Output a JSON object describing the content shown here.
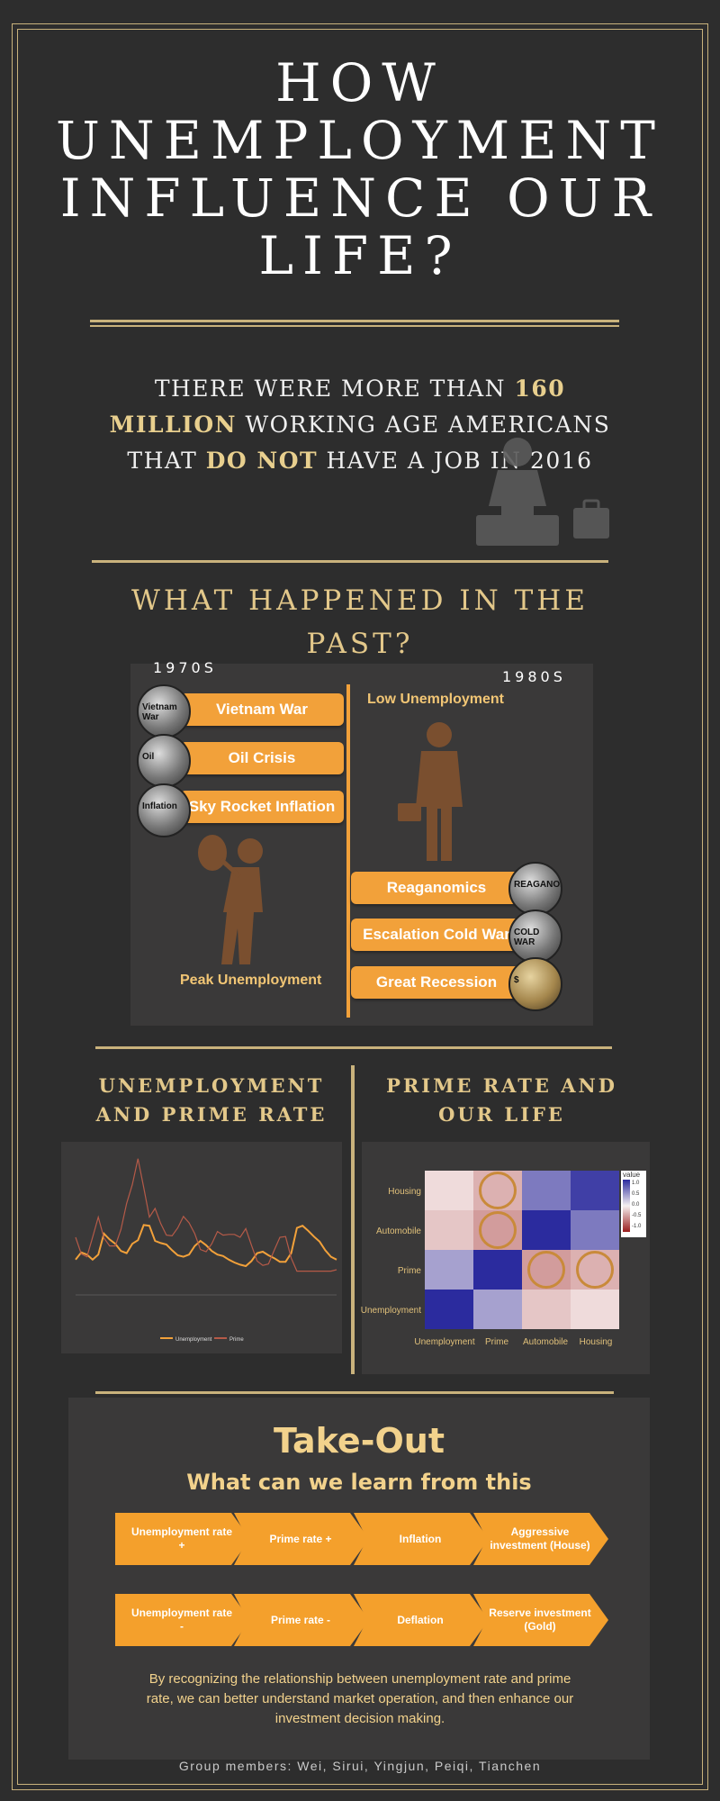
{
  "title": "HOW UNEMPLOYMENT INFLUENCE OUR LIFE?",
  "intro": {
    "part1": "THERE WERE MORE THAN ",
    "highlight1": "160 MILLION",
    "part2": " WORKING AGE AMERICANS THAT ",
    "highlight2": "DO NOT",
    "part3": " HAVE A JOB IN 2016"
  },
  "past": {
    "title": "WHAT HAPPENED IN THE PAST?",
    "decade_left": "1970S",
    "decade_right": "1980S",
    "events_70s": [
      "Vietnam War",
      "Oil Crisis",
      "Sky Rocket Inflation"
    ],
    "events_80s": [
      "Reaganomics",
      "Escalation Cold War",
      "Great Recession"
    ],
    "coin_texts": [
      "Vietnam War",
      "Oil",
      "Inflation",
      "REAGANOMICS",
      "COLD WAR",
      "$"
    ],
    "label_70s": "Peak Unemployment",
    "label_80s": "Low Unemployment"
  },
  "unemp_prime": {
    "title": "UNEMPLOYMENT AND PRIME RATE",
    "legend": [
      "Unemployment",
      "Prime"
    ]
  },
  "prime_life": {
    "title": "PRIME RATE AND OUR LIFE",
    "legend_title": "value",
    "legend_ticks": [
      "1.0",
      "0.5",
      "0.0",
      "-0.5",
      "-1.0"
    ],
    "rows": [
      "Housing",
      "Automobile",
      "Prime",
      "Unemployment"
    ],
    "cols": [
      "Unemployment",
      "Prime",
      "Automobile",
      "Housing"
    ]
  },
  "takeout": {
    "title": "Take-Out",
    "subtitle": "What can we learn from this",
    "row1": [
      "Unemployment rate +",
      "Prime rate +",
      "Inflation",
      "Aggressive investment (House)"
    ],
    "row2": [
      "Unemployment rate -",
      "Prime rate -",
      "Deflation",
      "Reserve investment (Gold)"
    ],
    "summary": "By recognizing the relationship between unemployment rate and prime rate,  we can better understand market operation, and then enhance our investment decision making."
  },
  "footer": "Group members: Wei, Sirui, Yingjun, Peiqi, Tianchen",
  "colors": {
    "background": "#2d2d2d",
    "gold": "#c9b27c",
    "orange": "#f2a13a",
    "title_gold": "#e3c88a"
  },
  "chart_data": [
    {
      "type": "line",
      "title": "",
      "series": [
        {
          "name": "Unemployment",
          "values": [
            4.9,
            5.9,
            5.6,
            4.9,
            5.6,
            8.5,
            7.7,
            7.1,
            6.1,
            5.8,
            7.1,
            7.6,
            9.7,
            9.6,
            7.5,
            7.2,
            7.0,
            6.2,
            5.5,
            5.3,
            5.6,
            6.8,
            7.5,
            6.9,
            6.1,
            5.6,
            5.4,
            4.9,
            4.5,
            4.2,
            4.0,
            4.7,
            5.8,
            6.0,
            5.5,
            5.1,
            4.6,
            4.6,
            5.8,
            9.3,
            9.6,
            8.9,
            8.1,
            7.4,
            6.2,
            5.3,
            4.9
          ]
        },
        {
          "name": "Prime",
          "values": [
            8.0,
            5.7,
            5.3,
            8.0,
            10.8,
            7.9,
            6.8,
            6.8,
            9.1,
            12.7,
            15.3,
            18.9,
            14.9,
            10.8,
            12.0,
            9.9,
            8.3,
            8.2,
            9.3,
            10.9,
            10.0,
            8.5,
            6.3,
            6.0,
            7.1,
            8.8,
            8.3,
            8.4,
            8.4,
            8.0,
            9.2,
            6.9,
            4.7,
            4.1,
            4.3,
            6.2,
            8.0,
            8.1,
            5.1,
            3.3,
            3.3,
            3.3,
            3.3,
            3.3,
            3.3,
            3.3,
            3.5
          ]
        }
      ],
      "legend": "bottom"
    },
    {
      "type": "heatmap",
      "rows": [
        "Housing",
        "Automobile",
        "Prime",
        "Unemployment"
      ],
      "cols": [
        "Unemployment",
        "Prime",
        "Automobile",
        "Housing"
      ],
      "values": [
        [
          -0.1,
          -0.3,
          0.6,
          0.9
        ],
        [
          -0.2,
          -0.4,
          1.0,
          0.6
        ],
        [
          0.4,
          1.0,
          -0.4,
          -0.3
        ],
        [
          1.0,
          0.4,
          -0.2,
          -0.1
        ]
      ],
      "legend_title": "value",
      "legend_range": [
        -1.0,
        1.0
      ],
      "highlighted": [
        [
          0,
          1
        ],
        [
          1,
          1
        ],
        [
          2,
          2
        ],
        [
          2,
          3
        ]
      ]
    }
  ]
}
